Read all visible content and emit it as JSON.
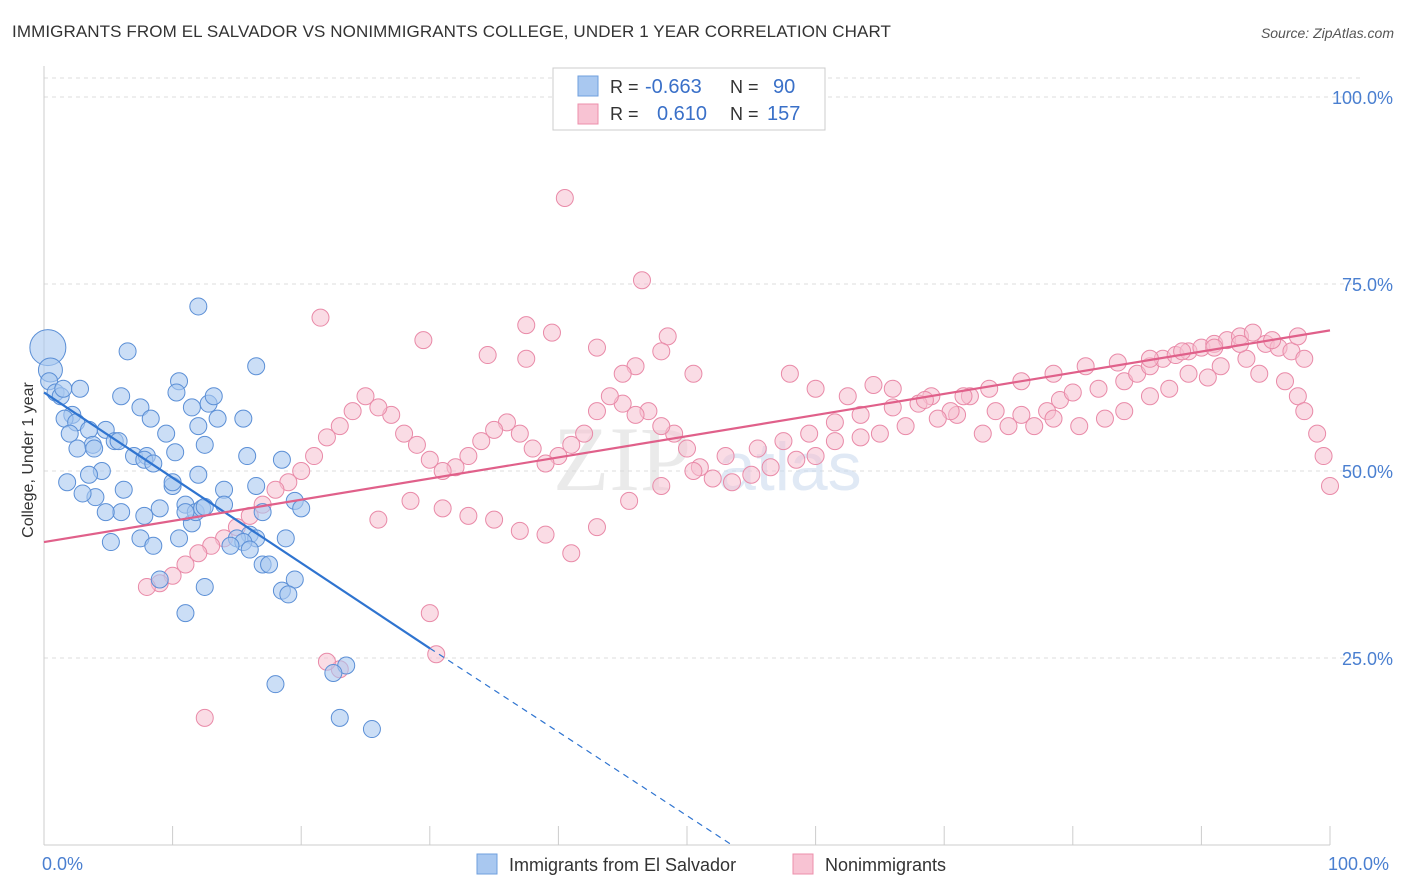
{
  "header": {
    "title": "IMMIGRANTS FROM EL SALVADOR VS NONIMMIGRANTS COLLEGE, UNDER 1 YEAR CORRELATION CHART",
    "source": "Source: ZipAtlas.com"
  },
  "watermark": {
    "zip": "ZIP",
    "atlas": "atlas"
  },
  "stats_legend": [
    {
      "r_label": "R =",
      "r_value": "-0.663",
      "n_label": "N =",
      "n_value": "90",
      "color": "#a9c8f0",
      "stroke": "#6f9fde"
    },
    {
      "r_label": "R =",
      "r_value": "0.610",
      "n_label": "N =",
      "n_value": "157",
      "color": "#f8c3d3",
      "stroke": "#ec8fab"
    }
  ],
  "colors": {
    "blue_fill": "#a9c8f0",
    "blue_stroke": "#5b8fd6",
    "blue_line": "#2f74d0",
    "pink_fill": "#f6bfd0",
    "pink_stroke": "#e98aa8",
    "pink_line": "#e0608a",
    "grid": "#dddddd",
    "tick_label": "#4a7fd0"
  },
  "chart_data": {
    "type": "scatter",
    "title": "IMMIGRANTS FROM EL SALVADOR VS NONIMMIGRANTS COLLEGE, UNDER 1 YEAR CORRELATION CHART",
    "xlabel": "",
    "ylabel": "College, Under 1 year",
    "xlim": [
      0,
      100
    ],
    "ylim": [
      0,
      100
    ],
    "x_tick_labels": [
      "0.0%",
      "100.0%"
    ],
    "y_ticks": [
      25,
      50,
      75,
      100
    ],
    "y_tick_labels": [
      "25.0%",
      "50.0%",
      "75.0%",
      "100.0%"
    ],
    "grid": true,
    "legend_position": "bottom",
    "series": [
      {
        "name": "Immigrants from El Salvador",
        "color": "#a9c8f0",
        "r": -0.663,
        "n": 90,
        "trend": {
          "x": [
            0,
            30
          ],
          "y": [
            60.5,
            26.3
          ],
          "dashed_to": [
            53.5,
            0
          ]
        },
        "points": [
          [
            0.3,
            66.5
          ],
          [
            0.5,
            63.5
          ],
          [
            0.4,
            62
          ],
          [
            0.9,
            60.5
          ],
          [
            1.3,
            60
          ],
          [
            1.5,
            61
          ],
          [
            2.8,
            61
          ],
          [
            2.2,
            57.5
          ],
          [
            1.6,
            57
          ],
          [
            2.5,
            56.5
          ],
          [
            3.5,
            55.5
          ],
          [
            2.0,
            55
          ],
          [
            4.8,
            55.5
          ],
          [
            5.5,
            54
          ],
          [
            3.8,
            53.5
          ],
          [
            2.6,
            53
          ],
          [
            3.9,
            53
          ],
          [
            5.8,
            54
          ],
          [
            4.5,
            50
          ],
          [
            3.5,
            49.5
          ],
          [
            7.5,
            58.5
          ],
          [
            6.0,
            60
          ],
          [
            7.0,
            52
          ],
          [
            8.0,
            52
          ],
          [
            7.8,
            51.5
          ],
          [
            8.5,
            51
          ],
          [
            9.5,
            55
          ],
          [
            8.3,
            57
          ],
          [
            10.2,
            52.5
          ],
          [
            10.0,
            48
          ],
          [
            10.5,
            62
          ],
          [
            10.3,
            60.5
          ],
          [
            11.5,
            58.5
          ],
          [
            12.8,
            59
          ],
          [
            13.2,
            60
          ],
          [
            13.5,
            57
          ],
          [
            12.0,
            56
          ],
          [
            12.5,
            53.5
          ],
          [
            12.0,
            49.5
          ],
          [
            11.0,
            45.5
          ],
          [
            11.5,
            43
          ],
          [
            11.8,
            44.5
          ],
          [
            12.3,
            45
          ],
          [
            12.5,
            45.2
          ],
          [
            11.0,
            44.5
          ],
          [
            9.0,
            45
          ],
          [
            7.8,
            44
          ],
          [
            6.0,
            44.5
          ],
          [
            4.8,
            44.5
          ],
          [
            5.2,
            40.5
          ],
          [
            7.5,
            41
          ],
          [
            8.5,
            40
          ],
          [
            10.5,
            41
          ],
          [
            14.0,
            47.5
          ],
          [
            15.5,
            57
          ],
          [
            15.8,
            52
          ],
          [
            16.5,
            48
          ],
          [
            16.0,
            41.5
          ],
          [
            16.5,
            41
          ],
          [
            15.0,
            41
          ],
          [
            15.5,
            40.5
          ],
          [
            14.5,
            40
          ],
          [
            16.0,
            39.5
          ],
          [
            17.0,
            37.5
          ],
          [
            18.8,
            41
          ],
          [
            17.0,
            44.5
          ],
          [
            19.5,
            46
          ],
          [
            20.0,
            45
          ],
          [
            19.5,
            35.5
          ],
          [
            18.5,
            34
          ],
          [
            19.0,
            33.5
          ],
          [
            17.5,
            37.5
          ],
          [
            12.5,
            34.5
          ],
          [
            11.0,
            31
          ],
          [
            9.0,
            35.5
          ],
          [
            12.0,
            72
          ],
          [
            6.5,
            66
          ],
          [
            16.5,
            64
          ],
          [
            18.5,
            51.5
          ],
          [
            23.5,
            24
          ],
          [
            22.5,
            23
          ],
          [
            18.0,
            21.5
          ],
          [
            23.0,
            17
          ],
          [
            25.5,
            15.5
          ],
          [
            10.0,
            48.5
          ],
          [
            14.0,
            45.5
          ],
          [
            4.0,
            46.5
          ],
          [
            6.2,
            47.5
          ],
          [
            3.0,
            47
          ],
          [
            1.8,
            48.5
          ]
        ],
        "sizes_note": "largest point at x≈0.3"
      },
      {
        "name": "Nonimmigrants",
        "color": "#f6bfd0",
        "r": 0.61,
        "n": 157,
        "trend": {
          "x": [
            0,
            100
          ],
          "y": [
            40.5,
            68.8
          ]
        },
        "points": [
          [
            40.5,
            86.5
          ],
          [
            46.5,
            75.5
          ],
          [
            21.5,
            70.5
          ],
          [
            37.5,
            69.5
          ],
          [
            39.5,
            68.5
          ],
          [
            48.5,
            68
          ],
          [
            29.5,
            67.5
          ],
          [
            43,
            66.5
          ],
          [
            34.5,
            65.5
          ],
          [
            37.5,
            65
          ],
          [
            48,
            66
          ],
          [
            46,
            64
          ],
          [
            45,
            63
          ],
          [
            50.5,
            63
          ],
          [
            58,
            63
          ],
          [
            60,
            61
          ],
          [
            62.5,
            60
          ],
          [
            64.5,
            61.5
          ],
          [
            66,
            61
          ],
          [
            69,
            60
          ],
          [
            68,
            59
          ],
          [
            72,
            60
          ],
          [
            71,
            57.5
          ],
          [
            74,
            58
          ],
          [
            76,
            57.5
          ],
          [
            78,
            58
          ],
          [
            79,
            59.5
          ],
          [
            80,
            60.5
          ],
          [
            82,
            61
          ],
          [
            84,
            62
          ],
          [
            85,
            63
          ],
          [
            86,
            64
          ],
          [
            87,
            65
          ],
          [
            88,
            65.5
          ],
          [
            89,
            66
          ],
          [
            90,
            66.5
          ],
          [
            91,
            67
          ],
          [
            92,
            67.5
          ],
          [
            93,
            68
          ],
          [
            94,
            68.5
          ],
          [
            95,
            67
          ],
          [
            96,
            66.5
          ],
          [
            97,
            66
          ],
          [
            98,
            65
          ],
          [
            96.5,
            62
          ],
          [
            97.5,
            60
          ],
          [
            98,
            58
          ],
          [
            99,
            55
          ],
          [
            99.5,
            52
          ],
          [
            100,
            48
          ],
          [
            94.5,
            63
          ],
          [
            93.5,
            65
          ],
          [
            91.5,
            64
          ],
          [
            90.5,
            62.5
          ],
          [
            89,
            63
          ],
          [
            87.5,
            61
          ],
          [
            86,
            60
          ],
          [
            84,
            58
          ],
          [
            82.5,
            57
          ],
          [
            80.5,
            56
          ],
          [
            78.5,
            57
          ],
          [
            77,
            56
          ],
          [
            75,
            56
          ],
          [
            73,
            55
          ],
          [
            70.5,
            58
          ],
          [
            69.5,
            57
          ],
          [
            67,
            56
          ],
          [
            65,
            55
          ],
          [
            63.5,
            54.5
          ],
          [
            61.5,
            54
          ],
          [
            60,
            52
          ],
          [
            58.5,
            51.5
          ],
          [
            56.5,
            50.5
          ],
          [
            55,
            49.5
          ],
          [
            53.5,
            48.5
          ],
          [
            52,
            49
          ],
          [
            51,
            50.5
          ],
          [
            50,
            53
          ],
          [
            49,
            55
          ],
          [
            48,
            56
          ],
          [
            47,
            58
          ],
          [
            46,
            57.5
          ],
          [
            45,
            59
          ],
          [
            44,
            60
          ],
          [
            43,
            58
          ],
          [
            42,
            55
          ],
          [
            41,
            53.5
          ],
          [
            40,
            52
          ],
          [
            39,
            51
          ],
          [
            38,
            53
          ],
          [
            37,
            55
          ],
          [
            36,
            56.5
          ],
          [
            35,
            55.5
          ],
          [
            34,
            54
          ],
          [
            33,
            52
          ],
          [
            32,
            50.5
          ],
          [
            31,
            50
          ],
          [
            30,
            51.5
          ],
          [
            29,
            53.5
          ],
          [
            28,
            55
          ],
          [
            27,
            57.5
          ],
          [
            26,
            58.5
          ],
          [
            25,
            60
          ],
          [
            24,
            58
          ],
          [
            23,
            56
          ],
          [
            22,
            54.5
          ],
          [
            21,
            52
          ],
          [
            20,
            50
          ],
          [
            19,
            48.5
          ],
          [
            18,
            47.5
          ],
          [
            17,
            45.5
          ],
          [
            16,
            44
          ],
          [
            15,
            42.5
          ],
          [
            14,
            41
          ],
          [
            13,
            40
          ],
          [
            12,
            39
          ],
          [
            11,
            37.5
          ],
          [
            10,
            36
          ],
          [
            9,
            35
          ],
          [
            8,
            34.5
          ],
          [
            26,
            43.5
          ],
          [
            28.5,
            46
          ],
          [
            31,
            45
          ],
          [
            33,
            44
          ],
          [
            35,
            43.5
          ],
          [
            37,
            42
          ],
          [
            39,
            41.5
          ],
          [
            41,
            39
          ],
          [
            43,
            42.5
          ],
          [
            45.5,
            46
          ],
          [
            48,
            48
          ],
          [
            50.5,
            50
          ],
          [
            53,
            52
          ],
          [
            55.5,
            53
          ],
          [
            57.5,
            54
          ],
          [
            59.5,
            55
          ],
          [
            61.5,
            56.5
          ],
          [
            63.5,
            57.5
          ],
          [
            66,
            58.5
          ],
          [
            68.5,
            59.5
          ],
          [
            71.5,
            60
          ],
          [
            73.5,
            61
          ],
          [
            76,
            62
          ],
          [
            78.5,
            63
          ],
          [
            81,
            64
          ],
          [
            83.5,
            64.5
          ],
          [
            86,
            65
          ],
          [
            88.5,
            66
          ],
          [
            91,
            66.5
          ],
          [
            93,
            67
          ],
          [
            95.5,
            67.5
          ],
          [
            97.5,
            68
          ],
          [
            12.5,
            17
          ],
          [
            23,
            23.5
          ],
          [
            22,
            24.5
          ],
          [
            30.5,
            25.5
          ],
          [
            30,
            31
          ]
        ]
      }
    ]
  },
  "bottom_legend": [
    {
      "label": "Immigrants from El Salvador"
    },
    {
      "label": "Nonimmigrants"
    }
  ]
}
